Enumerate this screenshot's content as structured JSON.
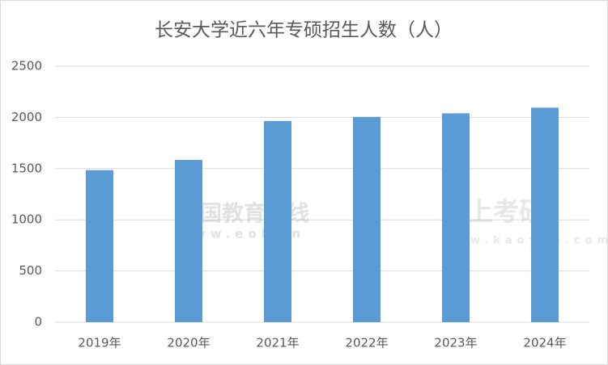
{
  "chart_data": {
    "type": "bar",
    "title": "长安大学近六年专硕招生人数（人）",
    "categories": [
      "2019年",
      "2020年",
      "2021年",
      "2022年",
      "2023年",
      "2024年"
    ],
    "values": [
      1485,
      1585,
      1965,
      2005,
      2040,
      2095
    ],
    "color": "#5b9bd5",
    "ylim": [
      0,
      2500
    ],
    "yticks": [
      0,
      500,
      1000,
      1500,
      2000,
      2500
    ],
    "grid": true,
    "watermarks": [
      "中国教育在线",
      "www.eol.cn",
      "掌上考研",
      "www.kaoyan.com"
    ]
  }
}
